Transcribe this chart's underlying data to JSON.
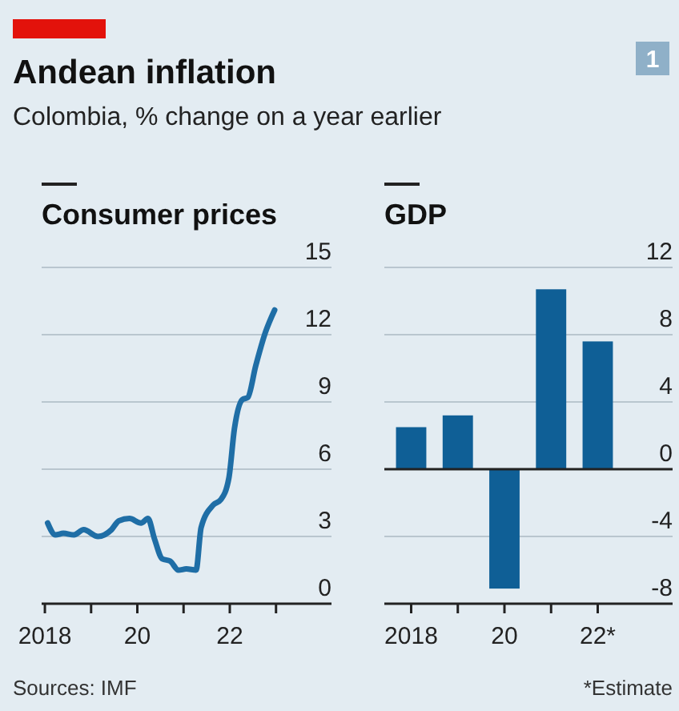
{
  "chart_data": [
    {
      "type": "other",
      "title": "Andean inflation",
      "subtitle": "Colombia, % change on a year earlier",
      "annotations": [
        "1",
        "Sources: IMF",
        "*Estimate"
      ]
    },
    {
      "type": "line",
      "title": "Consumer prices",
      "xlim": [
        2017.93,
        2024.2
      ],
      "xticks": [
        {
          "value": 2018,
          "label": "2018"
        },
        {
          "value": 2019,
          "label": null
        },
        {
          "value": 2020,
          "label": "20"
        },
        {
          "value": 2021,
          "label": null
        },
        {
          "value": 2022,
          "label": "22"
        },
        {
          "value": 2023,
          "label": null
        }
      ],
      "ylim": [
        0,
        15
      ],
      "yticks": [
        0,
        3,
        6,
        9,
        12,
        15
      ],
      "grid": "y",
      "series": [
        {
          "color": "#1f6ea6",
          "x": [
            2018.06,
            2018.23,
            2018.4,
            2018.63,
            2018.84,
            2019.15,
            2019.44,
            2019.6,
            2019.83,
            2020.08,
            2020.23,
            2020.37,
            2020.54,
            2020.71,
            2020.89,
            2021.06,
            2021.27,
            2021.38,
            2021.64,
            2021.81,
            2021.98,
            2022.1,
            2022.27,
            2022.39,
            2022.56,
            2022.77,
            2022.97
          ],
          "values": [
            3.6,
            3.07,
            3.14,
            3.07,
            3.3,
            3.0,
            3.3,
            3.7,
            3.8,
            3.6,
            3.8,
            2.9,
            2.0,
            1.9,
            1.5,
            1.55,
            1.5,
            3.4,
            4.4,
            4.65,
            5.6,
            7.8,
            9.1,
            9.2,
            10.6,
            12.1,
            13.1
          ]
        }
      ]
    },
    {
      "type": "bar",
      "title": "GDP",
      "categories": [
        "2018",
        null,
        "20",
        null,
        "22*"
      ],
      "values": [
        2.5,
        3.2,
        -7.1,
        10.7,
        7.6
      ],
      "color": "#0f5f96",
      "ylim": [
        -8,
        12
      ],
      "yticks": [
        -8,
        -4,
        0,
        4,
        8,
        12
      ],
      "grid": "y"
    }
  ]
}
